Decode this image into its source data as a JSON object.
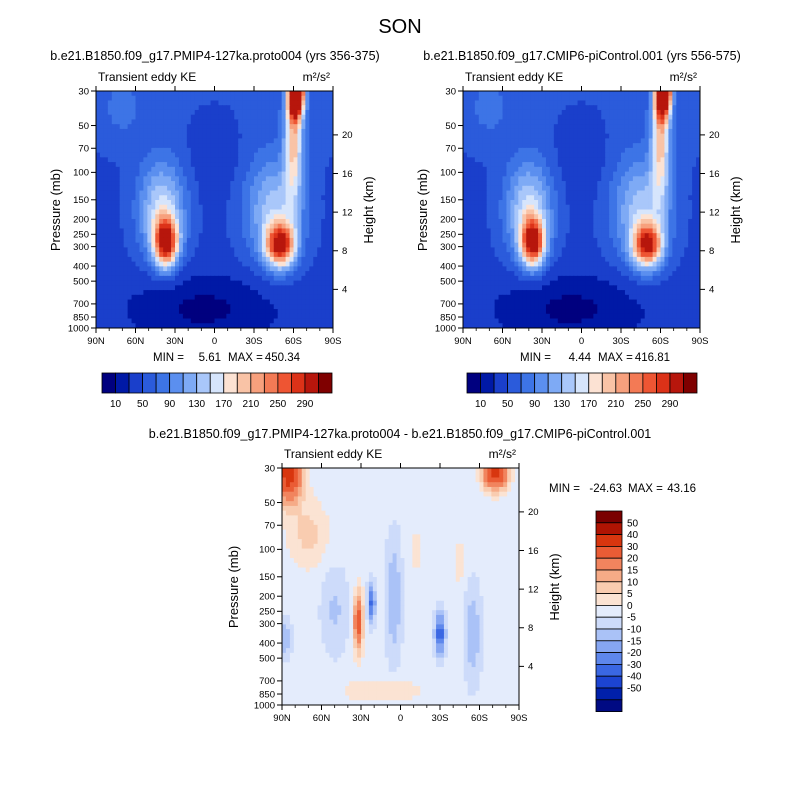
{
  "figure_title": "SON",
  "colors": {
    "seq_levels": [
      "#00007f",
      "#0019a6",
      "#1a3fcb",
      "#2b5bdb",
      "#3d74e6",
      "#5b8fef",
      "#7eaaf5",
      "#a9c7fa",
      "#d6e5fc",
      "#fce2d3",
      "#f9c3a6",
      "#f7a07d",
      "#f37a55",
      "#ee5533",
      "#dc3218",
      "#b7160c",
      "#7f0000"
    ],
    "diff_levels": [
      "#000a83",
      "#0020aa",
      "#1c44d2",
      "#3a67e3",
      "#5e87ec",
      "#86a6f2",
      "#aac2f7",
      "#cddbfa",
      "#e4ecfc",
      "#fbe3d3",
      "#f9ccb0",
      "#f6ab87",
      "#f1845e",
      "#ea5c35",
      "#d8360f",
      "#b01403",
      "#7a0000"
    ]
  },
  "chart_data": [
    {
      "type": "heatmap",
      "id": "panel-a",
      "title": "b.e21.B1850.f09_g17.PMIP4-127ka.proto004 (yrs 356-375)",
      "left_label": "Transient eddy KE",
      "units": "m²/s²",
      "xlabel": "",
      "ylabel": "Pressure (mb)",
      "ylabel_right": "Height (km)",
      "x_ticks": [
        "90N",
        "60N",
        "30N",
        "0",
        "30S",
        "60S",
        "90S"
      ],
      "y_ticks": [
        "30",
        "50",
        "70",
        "100",
        "150",
        "200",
        "250",
        "300",
        "400",
        "500",
        "700",
        "850",
        "1000"
      ],
      "y_ticks_right": [
        "20",
        "16",
        "12",
        "8",
        "4"
      ],
      "stats": {
        "min_label": "MIN =",
        "min": "5.61",
        "max_label": "MAX =",
        "max": "450.34"
      },
      "colorbar": {
        "orientation": "horizontal",
        "tick_labels": [
          "10",
          "50",
          "90",
          "130",
          "170",
          "210",
          "250",
          "290"
        ]
      },
      "features": [
        {
          "name": "NH jet",
          "lat": 37,
          "p": 260,
          "peak": 290
        },
        {
          "name": "SH jet",
          "lat": -50,
          "p": 270,
          "peak": 265
        },
        {
          "name": "SH stratospheric jet",
          "lat": -62,
          "p": 30,
          "peak": 450
        }
      ]
    },
    {
      "type": "heatmap",
      "id": "panel-b",
      "title": "b.e21.B1850.f09_g17.CMIP6-piControl.001 (yrs 556-575)",
      "left_label": "Transient eddy KE",
      "units": "m²/s²",
      "xlabel": "",
      "ylabel": "Pressure (mb)",
      "ylabel_right": "Height (km)",
      "x_ticks": [
        "90N",
        "60N",
        "30N",
        "0",
        "30S",
        "60S",
        "90S"
      ],
      "y_ticks": [
        "30",
        "50",
        "70",
        "100",
        "150",
        "200",
        "250",
        "300",
        "400",
        "500",
        "700",
        "850",
        "1000"
      ],
      "y_ticks_right": [
        "20",
        "16",
        "12",
        "8",
        "4"
      ],
      "stats": {
        "min_label": "MIN =",
        "min": "4.44",
        "max_label": "MAX =",
        "max": "416.81"
      },
      "colorbar": {
        "orientation": "horizontal",
        "tick_labels": [
          "10",
          "50",
          "90",
          "130",
          "170",
          "210",
          "250",
          "290"
        ]
      },
      "features": [
        {
          "name": "NH jet",
          "lat": 37,
          "p": 260,
          "peak": 285
        },
        {
          "name": "SH jet",
          "lat": -50,
          "p": 270,
          "peak": 260
        },
        {
          "name": "SH stratospheric jet",
          "lat": -62,
          "p": 30,
          "peak": 415
        }
      ]
    },
    {
      "type": "heatmap",
      "id": "panel-diff",
      "title": "b.e21.B1850.f09_g17.PMIP4-127ka.proto004 - b.e21.B1850.f09_g17.CMIP6-piControl.001",
      "left_label": "Transient eddy KE",
      "units": "m²/s²",
      "xlabel": "",
      "ylabel": "Pressure (mb)",
      "ylabel_right": "Height (km)",
      "x_ticks": [
        "90N",
        "60N",
        "30N",
        "0",
        "30S",
        "60S",
        "90S"
      ],
      "y_ticks": [
        "30",
        "50",
        "70",
        "100",
        "150",
        "200",
        "250",
        "300",
        "400",
        "500",
        "700",
        "850",
        "1000"
      ],
      "y_ticks_right": [
        "20",
        "16",
        "12",
        "8",
        "4"
      ],
      "stats": {
        "min_label": "MIN =",
        "min": "-24.63",
        "max_label": "MAX =",
        "max": "43.16"
      },
      "colorbar": {
        "orientation": "vertical",
        "tick_labels": [
          "50",
          "40",
          "30",
          "20",
          "15",
          "10",
          "5",
          "0",
          "-5",
          "-10",
          "-15",
          "-20",
          "-30",
          "-40",
          "-50"
        ]
      },
      "features": [
        {
          "name": "NH polar strat max",
          "lat": 85,
          "p": 35,
          "peak": 40
        },
        {
          "name": "SH polar strat max",
          "lat": -70,
          "p": 32,
          "peak": 43
        },
        {
          "name": "NH subtropical positive",
          "lat": 32,
          "p": 250,
          "peak": 35
        },
        {
          "name": "NH mid negative",
          "lat": 22,
          "p": 170,
          "peak": -22
        },
        {
          "name": "SH mid negative",
          "lat": -30,
          "p": 320,
          "peak": -24
        }
      ]
    }
  ]
}
